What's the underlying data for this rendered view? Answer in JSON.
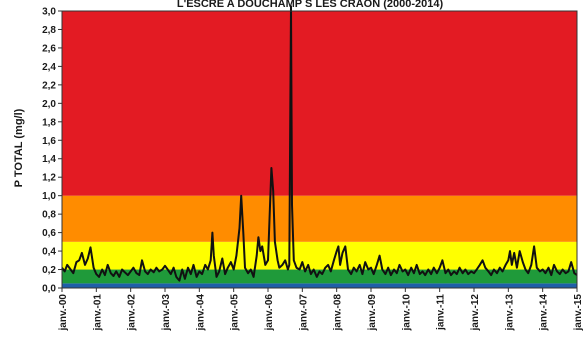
{
  "chart_data": {
    "type": "line",
    "title": "L'ESCRE A DOUCHAMP S LES CRAON (2000-2014)",
    "xlabel": "",
    "ylabel": "P TOTAL (mg/l)",
    "ylim": [
      0,
      3.0
    ],
    "y_ticks": [
      "0,0",
      "0,2",
      "0,4",
      "0,6",
      "0,8",
      "1,0",
      "1,2",
      "1,4",
      "1,6",
      "1,8",
      "2,0",
      "2,2",
      "2,4",
      "2,6",
      "2,8",
      "3,0"
    ],
    "x_ticks": [
      "janv.-00",
      "janv.-01",
      "janv.-02",
      "janv.-03",
      "janv.-04",
      "janv.-05",
      "janv.-06",
      "janv.-07",
      "janv.-08",
      "janv.-09",
      "janv.-10",
      "janv.-11",
      "janv.-12",
      "janv.-13",
      "janv.-14",
      "janv.-15"
    ],
    "quality_bands": [
      {
        "from": 0.0,
        "to": 0.05,
        "color": "#1f5fa8"
      },
      {
        "from": 0.05,
        "to": 0.2,
        "color": "#1f9a3a"
      },
      {
        "from": 0.2,
        "to": 0.5,
        "color": "#ffff00"
      },
      {
        "from": 0.5,
        "to": 1.0,
        "color": "#ff8c00"
      },
      {
        "from": 1.0,
        "to": 3.0,
        "color": "#e31b23"
      }
    ],
    "series": [
      {
        "color": "#111111",
        "points": [
          [
            2000.0,
            0.22
          ],
          [
            2000.08,
            0.18
          ],
          [
            2000.15,
            0.25
          ],
          [
            2000.25,
            0.2
          ],
          [
            2000.33,
            0.16
          ],
          [
            2000.42,
            0.28
          ],
          [
            2000.5,
            0.3
          ],
          [
            2000.58,
            0.38
          ],
          [
            2000.67,
            0.25
          ],
          [
            2000.75,
            0.32
          ],
          [
            2000.83,
            0.44
          ],
          [
            2000.92,
            0.22
          ],
          [
            2001.0,
            0.15
          ],
          [
            2001.08,
            0.12
          ],
          [
            2001.17,
            0.2
          ],
          [
            2001.25,
            0.14
          ],
          [
            2001.33,
            0.25
          ],
          [
            2001.42,
            0.16
          ],
          [
            2001.5,
            0.13
          ],
          [
            2001.58,
            0.18
          ],
          [
            2001.67,
            0.12
          ],
          [
            2001.75,
            0.2
          ],
          [
            2001.83,
            0.17
          ],
          [
            2001.92,
            0.14
          ],
          [
            2002.0,
            0.18
          ],
          [
            2002.08,
            0.22
          ],
          [
            2002.17,
            0.16
          ],
          [
            2002.25,
            0.14
          ],
          [
            2002.33,
            0.3
          ],
          [
            2002.42,
            0.18
          ],
          [
            2002.5,
            0.15
          ],
          [
            2002.58,
            0.2
          ],
          [
            2002.67,
            0.17
          ],
          [
            2002.75,
            0.22
          ],
          [
            2002.83,
            0.18
          ],
          [
            2002.92,
            0.2
          ],
          [
            2003.0,
            0.24
          ],
          [
            2003.08,
            0.2
          ],
          [
            2003.17,
            0.15
          ],
          [
            2003.25,
            0.22
          ],
          [
            2003.33,
            0.12
          ],
          [
            2003.42,
            0.08
          ],
          [
            2003.5,
            0.2
          ],
          [
            2003.58,
            0.1
          ],
          [
            2003.67,
            0.22
          ],
          [
            2003.75,
            0.15
          ],
          [
            2003.83,
            0.25
          ],
          [
            2003.92,
            0.12
          ],
          [
            2004.0,
            0.18
          ],
          [
            2004.08,
            0.15
          ],
          [
            2004.17,
            0.25
          ],
          [
            2004.25,
            0.2
          ],
          [
            2004.33,
            0.3
          ],
          [
            2004.38,
            0.6
          ],
          [
            2004.42,
            0.35
          ],
          [
            2004.5,
            0.12
          ],
          [
            2004.58,
            0.18
          ],
          [
            2004.67,
            0.32
          ],
          [
            2004.75,
            0.15
          ],
          [
            2004.83,
            0.22
          ],
          [
            2004.92,
            0.28
          ],
          [
            2005.0,
            0.2
          ],
          [
            2005.08,
            0.35
          ],
          [
            2005.17,
            0.65
          ],
          [
            2005.22,
            1.0
          ],
          [
            2005.28,
            0.6
          ],
          [
            2005.33,
            0.22
          ],
          [
            2005.42,
            0.16
          ],
          [
            2005.5,
            0.2
          ],
          [
            2005.58,
            0.12
          ],
          [
            2005.67,
            0.35
          ],
          [
            2005.72,
            0.55
          ],
          [
            2005.78,
            0.4
          ],
          [
            2005.83,
            0.45
          ],
          [
            2005.92,
            0.25
          ],
          [
            2006.0,
            0.3
          ],
          [
            2006.05,
            0.8
          ],
          [
            2006.1,
            1.3
          ],
          [
            2006.15,
            1.05
          ],
          [
            2006.2,
            0.5
          ],
          [
            2006.28,
            0.3
          ],
          [
            2006.33,
            0.22
          ],
          [
            2006.42,
            0.25
          ],
          [
            2006.5,
            0.3
          ],
          [
            2006.58,
            0.2
          ],
          [
            2006.62,
            0.25
          ],
          [
            2006.67,
            3.05
          ],
          [
            2006.7,
            0.9
          ],
          [
            2006.75,
            0.3
          ],
          [
            2006.83,
            0.22
          ],
          [
            2006.92,
            0.2
          ],
          [
            2007.0,
            0.28
          ],
          [
            2007.08,
            0.18
          ],
          [
            2007.17,
            0.25
          ],
          [
            2007.25,
            0.15
          ],
          [
            2007.33,
            0.2
          ],
          [
            2007.42,
            0.12
          ],
          [
            2007.5,
            0.18
          ],
          [
            2007.58,
            0.15
          ],
          [
            2007.67,
            0.22
          ],
          [
            2007.75,
            0.25
          ],
          [
            2007.83,
            0.18
          ],
          [
            2007.92,
            0.3
          ],
          [
            2008.0,
            0.4
          ],
          [
            2008.05,
            0.45
          ],
          [
            2008.1,
            0.25
          ],
          [
            2008.17,
            0.38
          ],
          [
            2008.25,
            0.45
          ],
          [
            2008.33,
            0.2
          ],
          [
            2008.42,
            0.15
          ],
          [
            2008.5,
            0.22
          ],
          [
            2008.58,
            0.18
          ],
          [
            2008.67,
            0.25
          ],
          [
            2008.75,
            0.15
          ],
          [
            2008.83,
            0.28
          ],
          [
            2008.92,
            0.2
          ],
          [
            2009.0,
            0.22
          ],
          [
            2009.08,
            0.15
          ],
          [
            2009.17,
            0.25
          ],
          [
            2009.25,
            0.35
          ],
          [
            2009.33,
            0.2
          ],
          [
            2009.42,
            0.15
          ],
          [
            2009.5,
            0.22
          ],
          [
            2009.58,
            0.14
          ],
          [
            2009.67,
            0.2
          ],
          [
            2009.75,
            0.16
          ],
          [
            2009.83,
            0.25
          ],
          [
            2009.92,
            0.18
          ],
          [
            2010.0,
            0.2
          ],
          [
            2010.08,
            0.14
          ],
          [
            2010.17,
            0.22
          ],
          [
            2010.25,
            0.16
          ],
          [
            2010.33,
            0.25
          ],
          [
            2010.42,
            0.15
          ],
          [
            2010.5,
            0.18
          ],
          [
            2010.58,
            0.14
          ],
          [
            2010.67,
            0.2
          ],
          [
            2010.75,
            0.15
          ],
          [
            2010.83,
            0.22
          ],
          [
            2010.92,
            0.16
          ],
          [
            2011.0,
            0.22
          ],
          [
            2011.08,
            0.3
          ],
          [
            2011.17,
            0.16
          ],
          [
            2011.25,
            0.2
          ],
          [
            2011.33,
            0.14
          ],
          [
            2011.42,
            0.18
          ],
          [
            2011.5,
            0.15
          ],
          [
            2011.58,
            0.22
          ],
          [
            2011.67,
            0.16
          ],
          [
            2011.75,
            0.2
          ],
          [
            2011.83,
            0.15
          ],
          [
            2011.92,
            0.18
          ],
          [
            2012.0,
            0.16
          ],
          [
            2012.08,
            0.2
          ],
          [
            2012.17,
            0.25
          ],
          [
            2012.25,
            0.3
          ],
          [
            2012.33,
            0.22
          ],
          [
            2012.42,
            0.18
          ],
          [
            2012.5,
            0.14
          ],
          [
            2012.58,
            0.2
          ],
          [
            2012.67,
            0.16
          ],
          [
            2012.75,
            0.22
          ],
          [
            2012.83,
            0.18
          ],
          [
            2012.92,
            0.25
          ],
          [
            2013.0,
            0.3
          ],
          [
            2013.05,
            0.4
          ],
          [
            2013.1,
            0.25
          ],
          [
            2013.17,
            0.38
          ],
          [
            2013.25,
            0.22
          ],
          [
            2013.33,
            0.4
          ],
          [
            2013.42,
            0.28
          ],
          [
            2013.5,
            0.2
          ],
          [
            2013.58,
            0.16
          ],
          [
            2013.67,
            0.25
          ],
          [
            2013.75,
            0.45
          ],
          [
            2013.83,
            0.22
          ],
          [
            2013.92,
            0.18
          ],
          [
            2014.0,
            0.2
          ],
          [
            2014.08,
            0.16
          ],
          [
            2014.17,
            0.22
          ],
          [
            2014.25,
            0.14
          ],
          [
            2014.33,
            0.25
          ],
          [
            2014.42,
            0.18
          ],
          [
            2014.5,
            0.15
          ],
          [
            2014.58,
            0.2
          ],
          [
            2014.67,
            0.16
          ],
          [
            2014.75,
            0.18
          ],
          [
            2014.83,
            0.28
          ],
          [
            2014.92,
            0.16
          ],
          [
            2015.0,
            0.14
          ]
        ]
      }
    ]
  }
}
